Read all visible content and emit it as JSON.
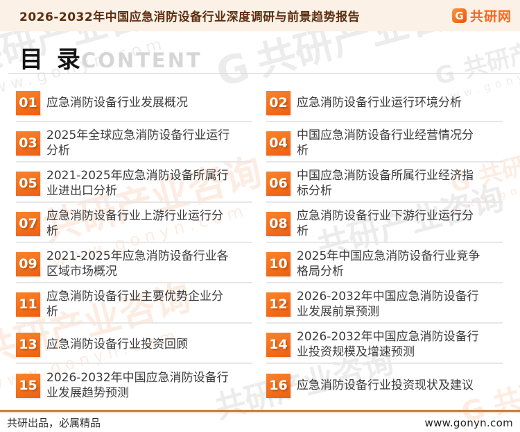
{
  "header": {
    "title": "2026-2032年中国应急消防设备行业深度调研与前景趋势报告",
    "logo": {
      "icon": "G",
      "text": "共研网"
    }
  },
  "toc": {
    "title": "目 录",
    "subtitle": "CONTENT",
    "items": [
      {
        "num": "01",
        "text": "应急消防设备行业发展概况"
      },
      {
        "num": "02",
        "text": "应急消防设备行业运行环境分析"
      },
      {
        "num": "03",
        "text": "2025年全球应急消防设备行业运行分析"
      },
      {
        "num": "04",
        "text": "中国应急消防设备行业经营情况分析"
      },
      {
        "num": "05",
        "text": "2021-2025年应急消防设备所属行业进出口分析"
      },
      {
        "num": "06",
        "text": "中国应急消防设备所属行业经济指标分析"
      },
      {
        "num": "07",
        "text": "应急消防设备行业上游行业运行分析"
      },
      {
        "num": "08",
        "text": "应急消防设备行业下游行业运行分析"
      },
      {
        "num": "09",
        "text": "2021-2025年应急消防设备行业各区域市场概况"
      },
      {
        "num": "10",
        "text": "2025年中国应急消防设备行业竞争格局分析"
      },
      {
        "num": "11",
        "text": "应急消防设备行业主要优势企业分析"
      },
      {
        "num": "12",
        "text": "2026-2032年中国应急消防设备行业发展前景预测"
      },
      {
        "num": "13",
        "text": "应急消防设备行业投资回顾"
      },
      {
        "num": "14",
        "text": "2026-2032年中国应急消防设备行业投资规模及增速预测"
      },
      {
        "num": "15",
        "text": "2026-2032年中国应急消防设备行业发展趋势预测"
      },
      {
        "num": "16",
        "text": "应急消防设备行业投资现状及建议"
      }
    ]
  },
  "footer": {
    "left": "共研出品，必属精品",
    "right": "www.gonyn.com"
  },
  "watermark": {
    "g": "G",
    "brand": "共研产业咨询",
    "url": "www.gonyn.com"
  },
  "colors": {
    "accent_orange": "#f3701d",
    "header_bg": "#fcf1e6",
    "header_text": "#5c2e10",
    "item_text": "#3a3a3a",
    "divider": "#e7e7e7",
    "subtitle_gray": "#d6d6d6",
    "footer_rule_dark": "#c87f3e",
    "footer_rule_light": "#e9bb8d"
  }
}
